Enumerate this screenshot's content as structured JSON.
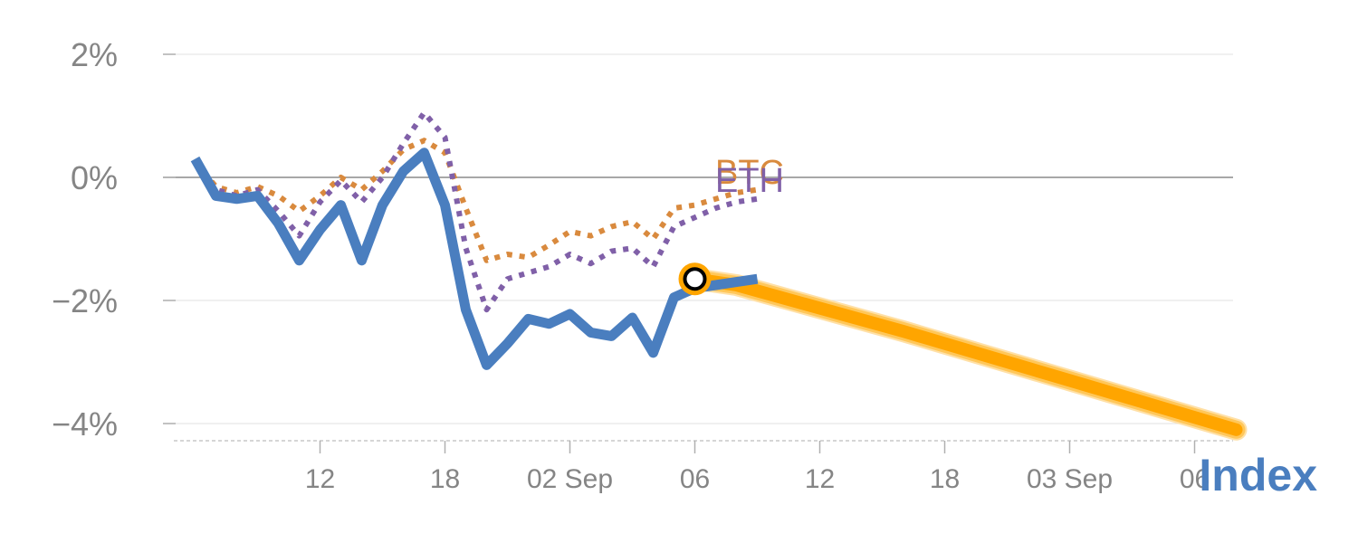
{
  "chart_data": {
    "type": "line",
    "title": "",
    "xlabel": "",
    "ylabel": "",
    "ylim": [
      -4.3,
      2.0
    ],
    "grid": true,
    "y_ticks": [
      {
        "value": 2,
        "label": "2%"
      },
      {
        "value": 0,
        "label": "0%"
      },
      {
        "value": -2,
        "label": "−2%"
      },
      {
        "value": -4,
        "label": "−4%"
      }
    ],
    "x_ticks": [
      {
        "x": 2,
        "label": "12"
      },
      {
        "x": 8,
        "label": "18"
      },
      {
        "x": 14,
        "label": "02 Sep"
      },
      {
        "x": 20,
        "label": "06"
      },
      {
        "x": 26,
        "label": "12"
      },
      {
        "x": 32,
        "label": "18"
      },
      {
        "x": 38,
        "label": "03 Sep"
      },
      {
        "x": 44,
        "label": "06"
      }
    ],
    "series": [
      {
        "name": "Index",
        "color": "#4a7ebf",
        "style": "solid",
        "x": [
          -4,
          -3,
          -2,
          -1,
          0,
          1,
          2,
          3,
          4,
          5,
          6,
          7,
          8,
          9,
          10,
          11,
          12,
          13,
          14,
          15,
          16,
          17,
          18,
          19,
          20,
          21,
          22,
          23
        ],
        "values": [
          0.3,
          -0.3,
          -0.35,
          -0.3,
          -0.75,
          -1.35,
          -0.85,
          -0.45,
          -1.35,
          -0.45,
          0.1,
          0.4,
          -0.45,
          -2.15,
          -3.05,
          -2.7,
          -2.3,
          -2.38,
          -2.22,
          -2.52,
          -2.58,
          -2.28,
          -2.85,
          -1.95,
          -1.8,
          -1.75,
          -1.7,
          -1.65
        ]
      },
      {
        "name": "BTC",
        "color": "#d98a3e",
        "style": "dotted",
        "x": [
          -4,
          -3,
          -2,
          -1,
          0,
          1,
          2,
          3,
          4,
          5,
          6,
          7,
          8,
          9,
          10,
          11,
          12,
          13,
          14,
          15,
          16,
          17,
          18,
          19,
          20,
          21,
          22,
          23
        ],
        "values": [
          0.25,
          -0.15,
          -0.25,
          -0.15,
          -0.3,
          -0.55,
          -0.3,
          0.0,
          -0.2,
          0.1,
          0.45,
          0.6,
          0.4,
          -0.5,
          -1.35,
          -1.25,
          -1.3,
          -1.1,
          -0.88,
          -0.95,
          -0.8,
          -0.72,
          -1.0,
          -0.5,
          -0.45,
          -0.35,
          -0.25,
          -0.2
        ]
      },
      {
        "name": "ETH",
        "color": "#8060a8",
        "style": "dotted",
        "x": [
          -4,
          -3,
          -2,
          -1,
          0,
          1,
          2,
          3,
          4,
          5,
          6,
          7,
          8,
          9,
          10,
          11,
          12,
          13,
          14,
          15,
          16,
          17,
          18,
          19,
          20,
          21,
          22,
          23
        ],
        "values": [
          0.25,
          -0.2,
          -0.3,
          -0.2,
          -0.55,
          -0.95,
          -0.4,
          -0.05,
          -0.4,
          0.0,
          0.55,
          1.05,
          0.65,
          -1.15,
          -2.15,
          -1.65,
          -1.55,
          -1.45,
          -1.25,
          -1.4,
          -1.2,
          -1.15,
          -1.45,
          -0.8,
          -0.65,
          -0.5,
          -0.4,
          -0.35
        ]
      },
      {
        "name": "forecast",
        "color": "#ffa500",
        "style": "band",
        "x": [
          20,
          22,
          30,
          38,
          46
        ],
        "values": [
          -1.65,
          -1.75,
          -2.5,
          -3.3,
          -4.1
        ]
      }
    ],
    "marker": {
      "x": 20,
      "value": -1.65
    }
  },
  "labels": {
    "btc": "BTC",
    "eth": "ETH",
    "index": "Index"
  }
}
